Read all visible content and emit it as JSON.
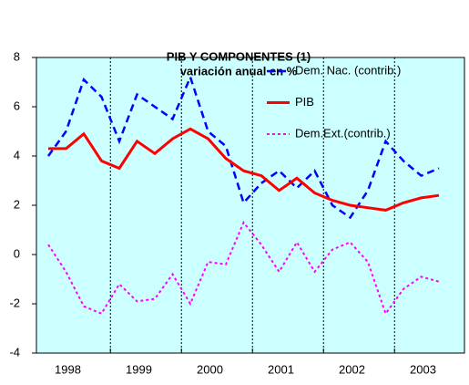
{
  "chart_data": {
    "type": "line",
    "title": "PIB Y COMPONENTES (1)",
    "subtitle": "variación anual  en %",
    "categories": [
      null,
      "1998",
      null,
      null,
      null,
      "1999",
      null,
      null,
      null,
      "2000",
      null,
      null,
      null,
      "2001",
      null,
      null,
      null,
      "2002",
      null,
      null,
      null,
      "2003",
      null
    ],
    "series": [
      {
        "name": "Dem. Nac. (contrib.)",
        "color": "#0000ff",
        "dash": "8,5",
        "width": 2.5,
        "values": [
          4.0,
          5.0,
          7.1,
          6.4,
          4.6,
          6.5,
          6.0,
          5.5,
          7.2,
          5.0,
          4.4,
          2.1,
          2.9,
          3.4,
          2.7,
          3.4,
          2.0,
          1.5,
          2.6,
          4.6,
          3.8,
          3.2,
          3.5
        ]
      },
      {
        "name": "PIB",
        "color": "#ff0000",
        "dash": "none",
        "width": 3,
        "values": [
          4.3,
          4.3,
          4.9,
          3.8,
          3.5,
          4.6,
          4.1,
          4.7,
          5.1,
          4.7,
          3.9,
          3.4,
          3.2,
          2.6,
          3.1,
          2.5,
          2.2,
          2.0,
          1.9,
          1.8,
          2.1,
          2.3,
          2.4
        ]
      },
      {
        "name": "Dem.Ext.(contrib.)",
        "color": "#ff00ff",
        "dash": "3,3",
        "width": 2,
        "values": [
          0.4,
          -0.7,
          -2.1,
          -2.4,
          -1.2,
          -1.9,
          -1.8,
          -0.8,
          -2.0,
          -0.3,
          -0.4,
          1.3,
          0.4,
          -0.7,
          0.5,
          -0.7,
          0.2,
          0.5,
          -0.3,
          -2.4,
          -1.4,
          -0.9,
          -1.1
        ]
      }
    ],
    "ylim": [
      -4,
      8
    ],
    "yticks": [
      -4,
      -2,
      0,
      2,
      4,
      6,
      8
    ],
    "legend": "upper right",
    "background": "#ccffff"
  }
}
